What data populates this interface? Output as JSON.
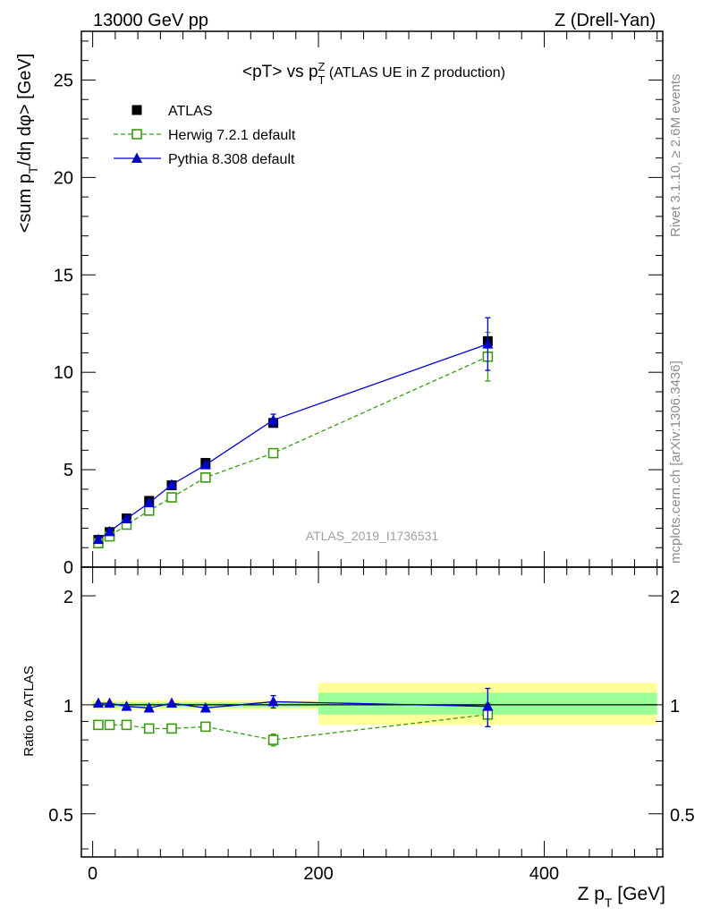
{
  "header": {
    "left": "13000 GeV pp",
    "right": "Z (Drell-Yan)"
  },
  "side_text": {
    "top": "Rivet 3.1.10, ≥ 2.6M events",
    "bottom": "mcplots.cern.ch [arXiv:1306.3436]"
  },
  "chart_data": [
    {
      "type": "line",
      "title": "<pT> vs p_T^Z (ATLAS UE in Z production)",
      "title_parts": {
        "main": "<pT> vs p",
        "sub": "T",
        "sup": "Z",
        "rest": " (ATLAS UE in Z production)"
      },
      "ylabel": "<sum p_T/dη dφ> [GeV]",
      "ylabel_parts": {
        "a": "<sum p",
        "sub": "T",
        "b": "/dη dφ> [GeV]"
      },
      "xlim": [
        -10,
        505
      ],
      "ylim": [
        0,
        27.5
      ],
      "yticks": [
        0,
        5,
        10,
        15,
        20,
        25
      ],
      "xticks": [
        0,
        200,
        400
      ],
      "legend_position": "top-left",
      "watermark": "ATLAS_2019_I1736531",
      "series": [
        {
          "name": "ATLAS",
          "color": "#000000",
          "marker": "square-filled",
          "points": [
            {
              "x": 5,
              "y": 1.4
            },
            {
              "x": 15,
              "y": 1.8
            },
            {
              "x": 30,
              "y": 2.5
            },
            {
              "x": 50,
              "y": 3.4
            },
            {
              "x": 70,
              "y": 4.2
            },
            {
              "x": 100,
              "y": 5.35
            },
            {
              "x": 160,
              "y": 7.4
            },
            {
              "x": 350,
              "y": 11.6
            }
          ]
        },
        {
          "name": "Herwig 7.2.1 default",
          "color": "#3c9b10",
          "marker": "square-open",
          "dashed": true,
          "points": [
            {
              "x": 5,
              "y": 1.23
            },
            {
              "x": 15,
              "y": 1.58
            },
            {
              "x": 30,
              "y": 2.18
            },
            {
              "x": 50,
              "y": 2.9
            },
            {
              "x": 70,
              "y": 3.58
            },
            {
              "x": 100,
              "y": 4.6
            },
            {
              "x": 160,
              "y": 5.85
            },
            {
              "x": 350,
              "y": 10.8,
              "err": 1.25
            }
          ]
        },
        {
          "name": "Pythia 8.308 default",
          "color": "#0000d0",
          "marker": "triangle-filled",
          "points": [
            {
              "x": 5,
              "y": 1.42
            },
            {
              "x": 15,
              "y": 1.82
            },
            {
              "x": 30,
              "y": 2.48
            },
            {
              "x": 50,
              "y": 3.3
            },
            {
              "x": 70,
              "y": 4.23
            },
            {
              "x": 100,
              "y": 5.25
            },
            {
              "x": 160,
              "y": 7.55,
              "err": 0.3
            },
            {
              "x": 350,
              "y": 11.45,
              "err": 1.35
            }
          ]
        }
      ]
    },
    {
      "type": "line",
      "ylabel": "Ratio to ATLAS",
      "xlabel": "Z p_T [GeV]",
      "xlabel_parts": {
        "a": "Z p",
        "sub": "T",
        "b": " [GeV]"
      },
      "xlim": [
        -10,
        505
      ],
      "ylim": [
        0.38,
        2.4
      ],
      "log_y": true,
      "yticks": [
        0.5,
        1,
        2
      ],
      "ytick_labels": [
        "0.5",
        "1",
        "2"
      ],
      "xticks": [
        0,
        200,
        400
      ],
      "bands": [
        {
          "from": 0,
          "to": 200,
          "inner": [
            0.985,
            1.015
          ],
          "outer": [
            0.97,
            1.03
          ]
        },
        {
          "from": 200,
          "to": 500,
          "inner": [
            0.94,
            1.08
          ],
          "outer": [
            0.88,
            1.15
          ]
        }
      ],
      "series": [
        {
          "name": "Herwig 7.2.1 default",
          "color": "#3c9b10",
          "marker": "square-open",
          "dashed": true,
          "points": [
            {
              "x": 5,
              "y": 0.88
            },
            {
              "x": 15,
              "y": 0.88
            },
            {
              "x": 30,
              "y": 0.88
            },
            {
              "x": 50,
              "y": 0.86
            },
            {
              "x": 70,
              "y": 0.86
            },
            {
              "x": 100,
              "y": 0.87
            },
            {
              "x": 160,
              "y": 0.8,
              "err": 0.03
            },
            {
              "x": 350,
              "y": 0.94,
              "err": 0.07
            }
          ]
        },
        {
          "name": "Pythia 8.308 default",
          "color": "#0000d0",
          "marker": "triangle-filled",
          "points": [
            {
              "x": 5,
              "y": 1.01
            },
            {
              "x": 15,
              "y": 1.01
            },
            {
              "x": 30,
              "y": 0.99
            },
            {
              "x": 50,
              "y": 0.98
            },
            {
              "x": 70,
              "y": 1.01
            },
            {
              "x": 100,
              "y": 0.98
            },
            {
              "x": 160,
              "y": 1.02,
              "err": 0.04
            },
            {
              "x": 350,
              "y": 0.99,
              "err": 0.12
            }
          ]
        }
      ]
    }
  ]
}
